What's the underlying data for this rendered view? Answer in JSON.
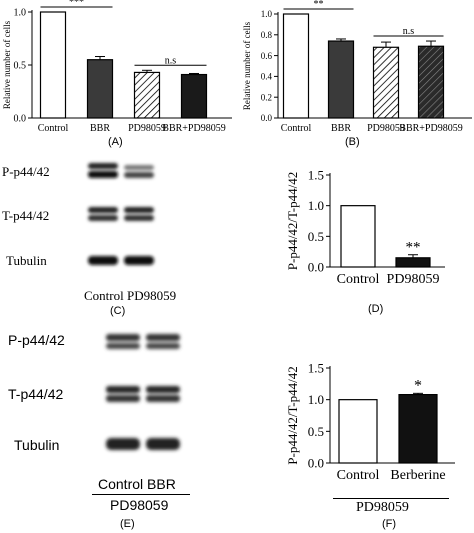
{
  "panels": {
    "A": {
      "letter": "(A)"
    },
    "B": {
      "letter": "(B)"
    },
    "C": {
      "letter": "(C)",
      "rows": [
        "P-p44/42",
        "T-p44/42",
        "Tubulin"
      ],
      "lanes": "Control PD98059"
    },
    "D": {
      "letter": "(D)"
    },
    "E": {
      "letter": "(E)",
      "rows": [
        "P-p44/42",
        "T-p44/42",
        "Tubulin"
      ],
      "lanes": "Control BBR",
      "group": "PD98059"
    },
    "F": {
      "letter": "(F)",
      "group": "PD98059"
    }
  },
  "chart_data": [
    {
      "id": "A",
      "type": "bar",
      "categories": [
        "Control",
        "BBR",
        "PD98059",
        "BBR+PD98059"
      ],
      "values": [
        1.0,
        0.55,
        0.43,
        0.41
      ],
      "errors": [
        0.0,
        0.03,
        0.02,
        0.01
      ],
      "fills": [
        "white",
        "dark",
        "hatch",
        "black"
      ],
      "ylabel": "Relative number of cells",
      "ylim": [
        0,
        1.0
      ],
      "yticks": [
        "0.0",
        "0.5",
        "1.0"
      ],
      "annotations": [
        {
          "text": "***",
          "from": 0,
          "to": 1
        },
        {
          "text": "n.s",
          "from": 2,
          "to": 3
        }
      ],
      "colors": {
        "dark": "#3a3a3a",
        "black": "#1a1a1a"
      }
    },
    {
      "id": "B",
      "type": "bar",
      "categories": [
        "Control",
        "BBR",
        "PD98059",
        "BBR+PD98059"
      ],
      "values": [
        1.0,
        0.74,
        0.68,
        0.69
      ],
      "errors": [
        0.0,
        0.02,
        0.05,
        0.05
      ],
      "fills": [
        "white",
        "dark",
        "hatch",
        "hatchdark"
      ],
      "ylabel": "Relative number of cells",
      "ylim": [
        0,
        1.0
      ],
      "yticks": [
        "0.0",
        "0.2",
        "0.4",
        "0.6",
        "0.8",
        "1.0"
      ],
      "annotations": [
        {
          "text": "**",
          "from": 0,
          "to": 1
        },
        {
          "text": "n.s",
          "from": 2,
          "to": 3
        }
      ],
      "colors": {
        "dark": "#3a3a3a",
        "hatchdark": "#2a2a2a"
      }
    },
    {
      "id": "D",
      "type": "bar",
      "categories": [
        "Control",
        "PD98059"
      ],
      "values": [
        1.0,
        0.15
      ],
      "errors": [
        0.0,
        0.05
      ],
      "fills": [
        "white",
        "black"
      ],
      "ylabel": "P-p44/42/T-p44/42",
      "ylim": [
        0,
        1.5
      ],
      "yticks": [
        "0.0",
        "0.5",
        "1.0",
        "1.5"
      ],
      "stars": [
        null,
        "**"
      ]
    },
    {
      "id": "F",
      "type": "bar",
      "categories": [
        "Control",
        "Berberine"
      ],
      "values": [
        1.0,
        1.08
      ],
      "errors": [
        0.0,
        0.02
      ],
      "fills": [
        "white",
        "black"
      ],
      "ylabel": "P-p44/42/T-p44/42",
      "ylim": [
        0,
        1.5
      ],
      "yticks": [
        "0.0",
        "0.5",
        "1.0",
        "1.5"
      ],
      "stars": [
        null,
        "*"
      ]
    }
  ]
}
